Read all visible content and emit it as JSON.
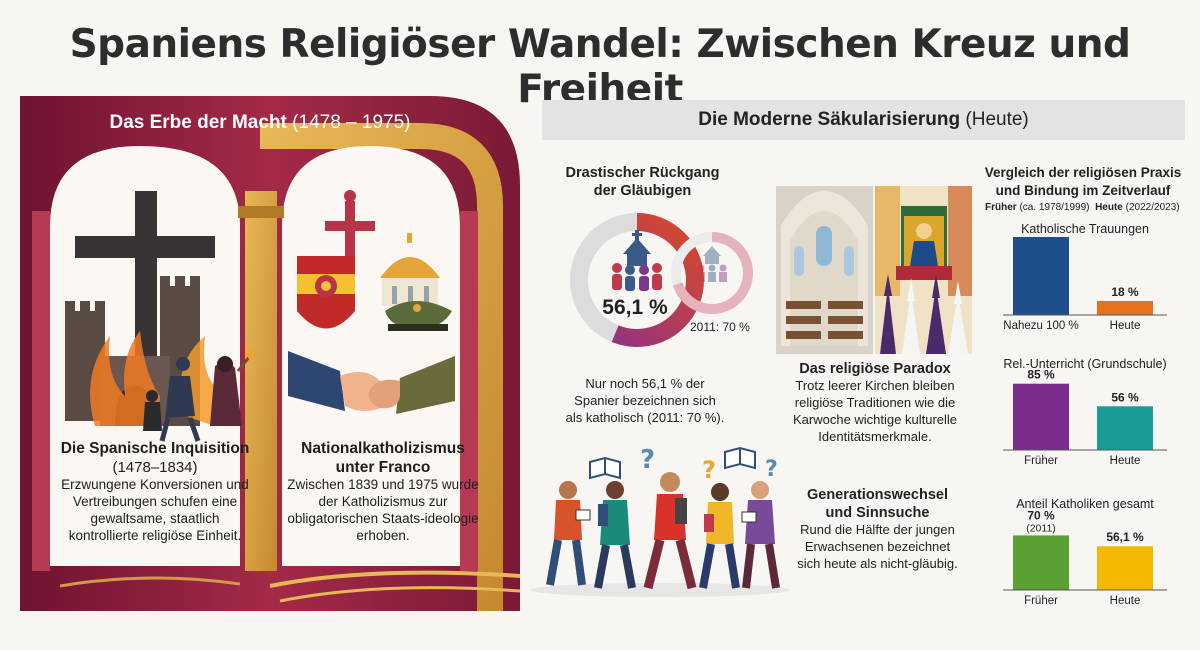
{
  "title": "Spaniens Religiöser Wandel: Zwischen Kreuz und Freiheit",
  "left": {
    "header_bold": "Das Erbe der Macht",
    "header_light": "(1478 – 1975)",
    "inquisition": {
      "title": "Die Spanische Inquisition",
      "years": "(1478–1834)",
      "text": "Erzwungene Konversionen und Vertreibungen schufen eine gewaltsame, staatlich kontrollierte religiöse Einheit."
    },
    "franco": {
      "title": "Nationalkatholizismus unter Franco",
      "text": "Zwischen 1839 und 1975 wurde der Katholizismus zur obligatorischen Staats-ideologie erhoben."
    }
  },
  "right": {
    "header_bold": "Die Moderne Säkularisierung",
    "header_light": "(Heute)",
    "decline": {
      "title": "Drastischer Rückgang der Gläubigen",
      "main_value": 56.1,
      "main_label": "56,1 %",
      "small_value": 70,
      "small_label": "2011: 70 %",
      "text": "Nur noch 56,1 % der Spanier bezeichnen sich als katholisch (2011: 70 %)."
    },
    "paradox": {
      "title": "Das religiöse Paradox",
      "text": "Trotz leerer Kirchen bleiben religiöse Traditionen wie die Karwoche wichtige kulturelle Identitätsmerkmale."
    },
    "generation": {
      "title": "Generationswechsel und Sinnsuche",
      "text": "Rund die Hälfte der jungen Erwachsenen bezeichnet sich heute als nicht-gläubig."
    }
  },
  "chart_data": [
    {
      "type": "bar",
      "title": "Katholische Trauungen",
      "categories": [
        "Nahezu 100 %",
        "Heute"
      ],
      "values": [
        100,
        18
      ],
      "labels": [
        "",
        "18 %"
      ],
      "colors": [
        "#1f4e8c",
        "#e8711c"
      ]
    },
    {
      "type": "bar",
      "title": "Rel.-Unterricht (Grundschule)",
      "categories": [
        "Früher",
        "Heute"
      ],
      "values": [
        85,
        56
      ],
      "labels": [
        "85 %",
        "56 %"
      ],
      "colors": [
        "#7b2d8e",
        "#1a9a96"
      ]
    },
    {
      "type": "bar",
      "title": "Anteil Katholiken gesamt",
      "categories": [
        "Früher",
        "Heute"
      ],
      "values": [
        70,
        56.1
      ],
      "labels": [
        "70 %",
        "56,1 %"
      ],
      "sublabels": [
        "(2011)",
        ""
      ],
      "colors": [
        "#5aa032",
        "#f5b800"
      ]
    }
  ],
  "chart_header": {
    "title": "Vergleich der religiösen Praxis und Bindung im Zeitverlauf",
    "legend_then_bold": "Früher",
    "legend_then_light": "(ca. 1978/1999)",
    "legend_now_bold": "Heute",
    "legend_now_light": "(2022/2023)"
  },
  "colors": {
    "maroon": "#8b1e3f",
    "gold": "#d9a642",
    "donut_grey": "#dcdcdc"
  }
}
